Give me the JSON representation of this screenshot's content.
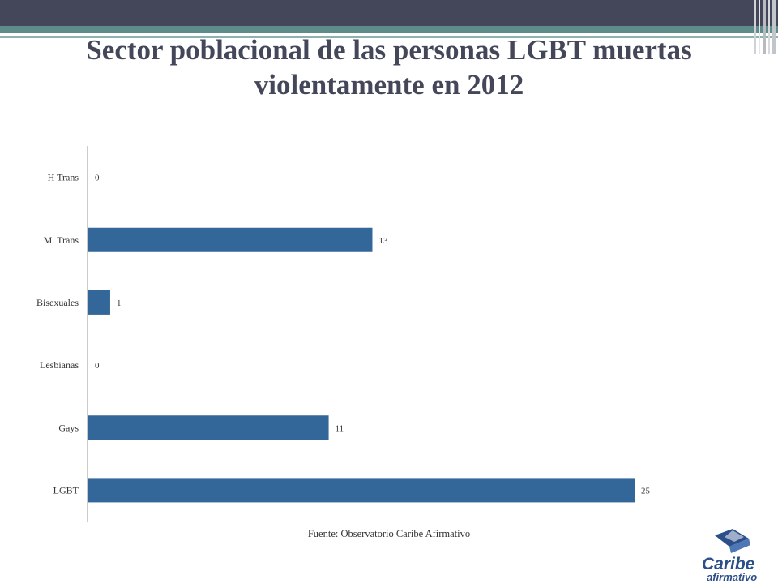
{
  "title": "Sector poblacional de las personas LGBT muertas  violentamente en 2012",
  "source": "Fuente: Observatorio Caribe Afirmativo",
  "logo": {
    "line1": "Caribe",
    "line2": "afirmativo"
  },
  "colors": {
    "bar": "#336699",
    "title": "#434759",
    "top_band": "#434759",
    "teal_band": "#5d8c8a"
  },
  "chart_data": {
    "type": "bar",
    "orientation": "horizontal",
    "categories": [
      "H Trans",
      "M. Trans",
      "Bisexuales",
      "Lesbianas",
      "Gays",
      "LGBT"
    ],
    "values": [
      0,
      13,
      1,
      0,
      11,
      25
    ],
    "title": "Sector poblacional de las personas LGBT muertas  violentamente en 2012",
    "xlim": [
      0,
      25
    ],
    "grid": false,
    "data_labels": true
  }
}
